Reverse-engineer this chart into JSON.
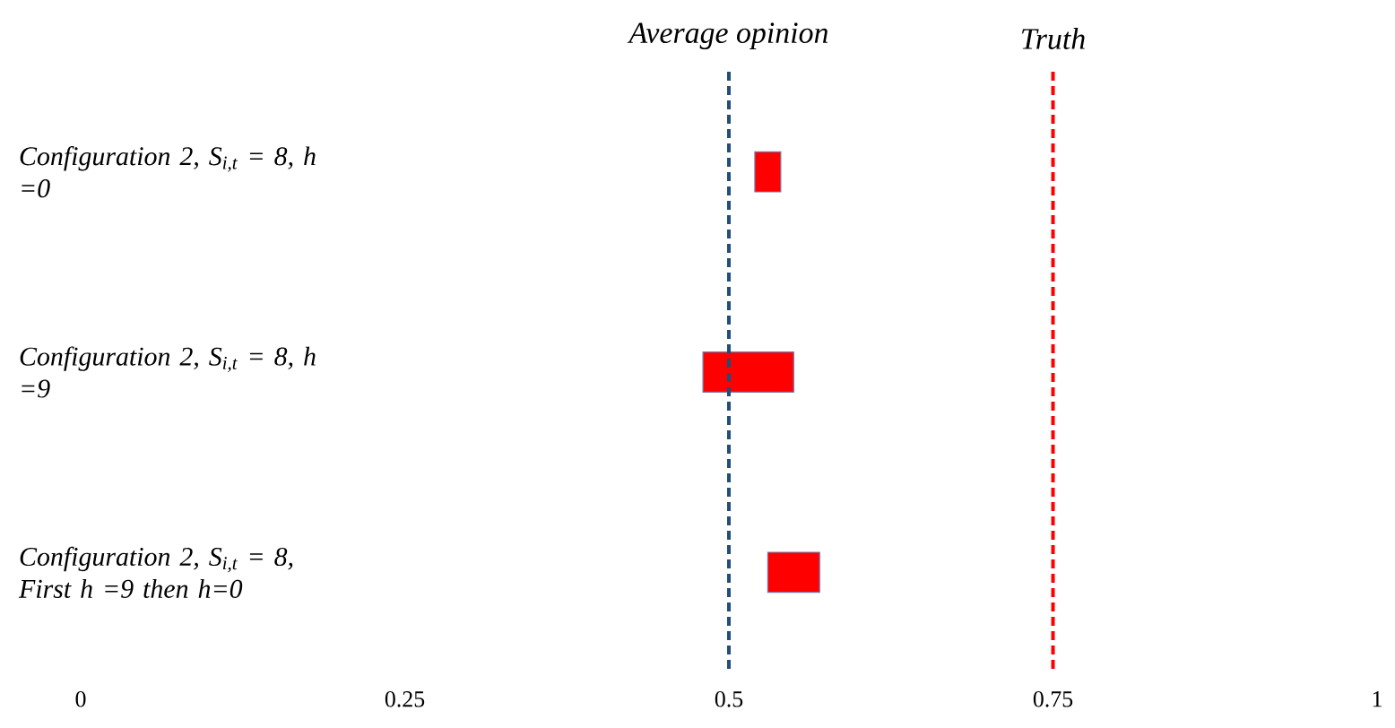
{
  "chart_data": {
    "type": "bar",
    "orientation": "horizontal",
    "categories": [
      "Configuration 2, S$_{i,t}$ = 8, h =0",
      "Configuration 2, S$_{i,t}$ = 8, h =9",
      "Configuration 2, S$_{i,t}$ = 8, First h =9 then h=0"
    ],
    "base": [
      0.52,
      0.48,
      0.53
    ],
    "values": [
      0.02,
      0.07,
      0.04
    ],
    "color": "#ff0000",
    "xlim": [
      0,
      1
    ],
    "xticks": [
      0,
      0.25,
      0.5,
      0.75,
      1
    ],
    "ref_lines": [
      {
        "axis": "x",
        "value": 0.5,
        "label": "Average opinion",
        "color": "#1f4e79",
        "line_style": "dashed"
      },
      {
        "axis": "x",
        "value": 0.75,
        "label": "Truth",
        "color": "#ff0000",
        "line_style": "dashed"
      }
    ]
  }
}
